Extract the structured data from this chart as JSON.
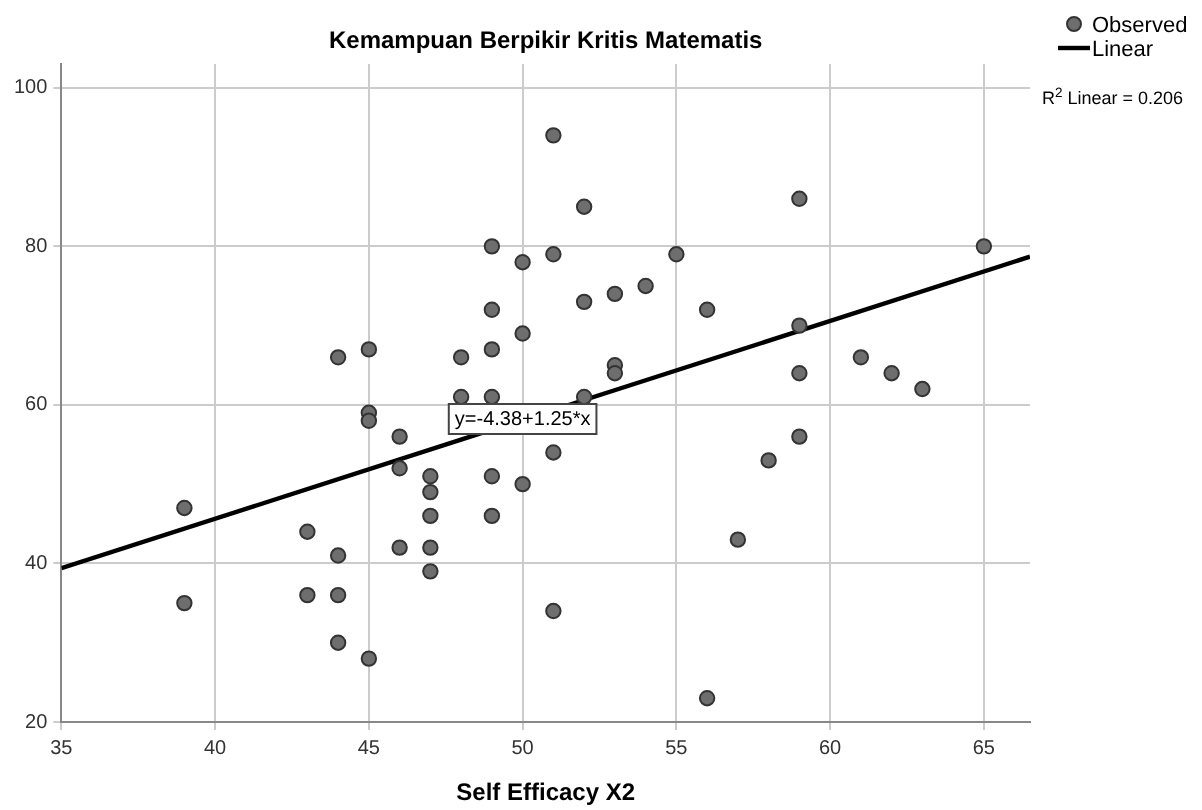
{
  "chart_data": {
    "type": "scatter",
    "title": "Kemampuan Berpikir Kritis Matematis",
    "xlabel": "Self Efficacy X2",
    "xlim": [
      35,
      66.5
    ],
    "xticks": [
      35,
      40,
      45,
      50,
      55,
      60,
      65
    ],
    "ylim": [
      20,
      103
    ],
    "yticks": [
      20,
      40,
      60,
      80,
      100
    ],
    "grid": true,
    "legend": "top right",
    "marker": "circle",
    "series": [
      {
        "name": "Observed",
        "color": "#6e6e6e",
        "x": [
          39,
          39,
          43,
          43,
          44,
          44,
          44,
          44,
          45,
          45,
          45,
          45,
          46,
          46,
          46,
          47,
          47,
          47,
          47,
          47,
          48,
          48,
          49,
          49,
          49,
          49,
          49,
          49,
          50,
          50,
          50,
          51,
          51,
          51,
          51,
          52,
          52,
          52,
          53,
          53,
          53,
          54,
          55,
          56,
          56,
          57,
          58,
          59,
          59,
          59,
          59,
          61,
          62,
          63,
          65
        ],
        "values": [
          47,
          35,
          44,
          36,
          66,
          41,
          36,
          30,
          67,
          59,
          58,
          28,
          56,
          52,
          42,
          51,
          49,
          46,
          42,
          39,
          66,
          61,
          80,
          72,
          67,
          61,
          51,
          46,
          78,
          69,
          50,
          94,
          79,
          54,
          34,
          85,
          73,
          61,
          74,
          65,
          64,
          75,
          79,
          72,
          23,
          43,
          53,
          86,
          70,
          64,
          56,
          66,
          64,
          62,
          80
        ]
      },
      {
        "name": "Linear",
        "type": "line",
        "color": "#000000",
        "line_style": "solid",
        "marker": "none",
        "x": [
          35,
          66.5
        ],
        "values": [
          39.4,
          78.7
        ]
      }
    ],
    "annotations": [
      {
        "text": "y=-4.38+1.25*x",
        "x": 50,
        "y": 58.1
      },
      "R$^{2}$ Linear = 0.206"
    ]
  }
}
